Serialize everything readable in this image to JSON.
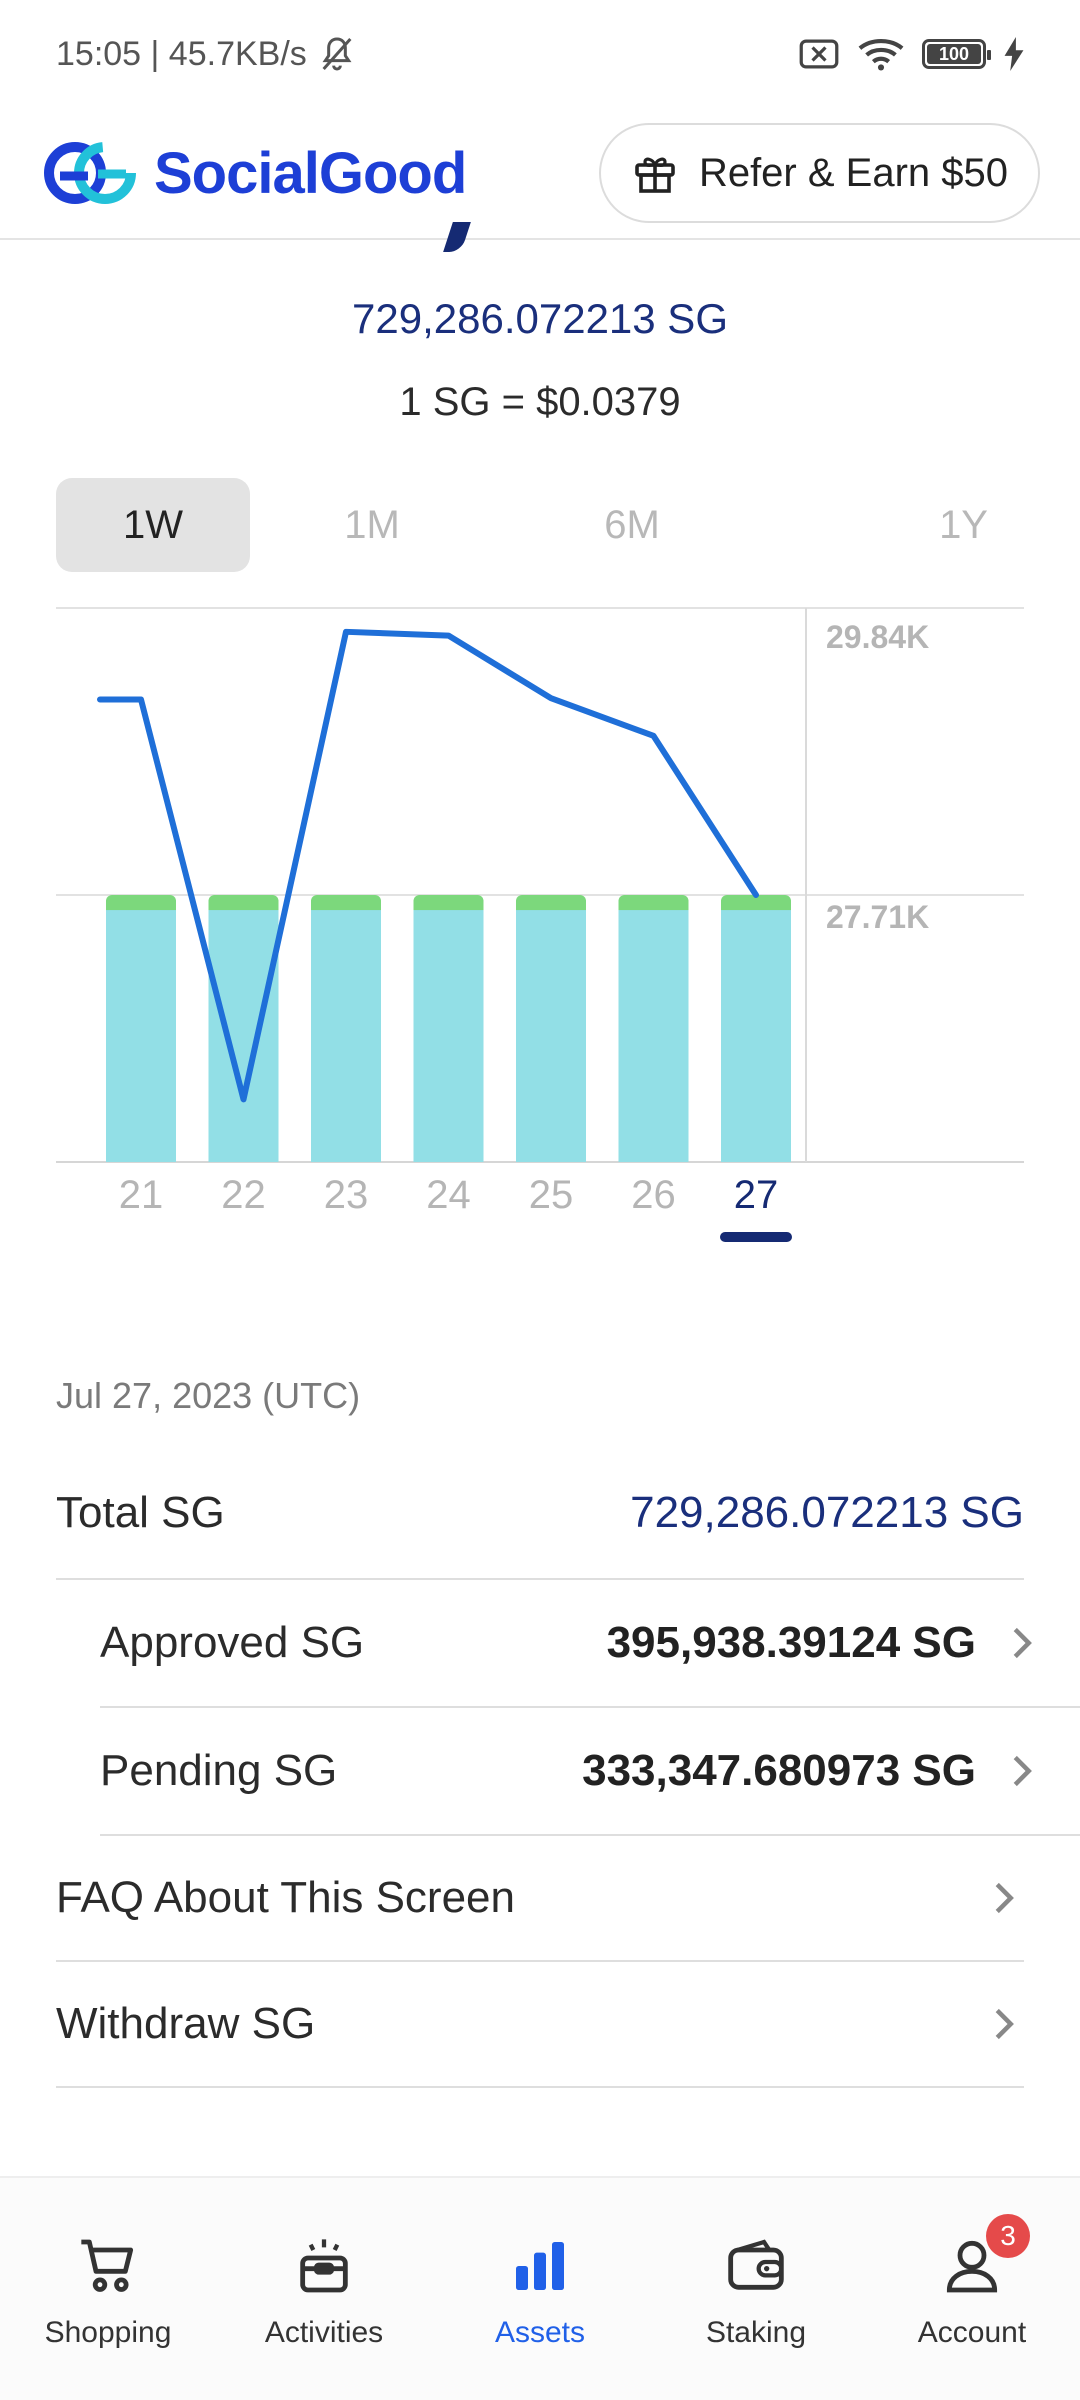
{
  "status_bar": {
    "time_speed": "15:05 | 45.7KB/s",
    "battery": "100"
  },
  "header": {
    "brand": "SocialGood",
    "refer_label": "Refer & Earn $50"
  },
  "balance": {
    "amount": "729,286.072213 SG",
    "rate": "1 SG = $0.0379"
  },
  "range_tabs": [
    "1W",
    "1M",
    "6M",
    "1Y"
  ],
  "chart_data": {
    "type": "bar",
    "categories": [
      "21",
      "22",
      "23",
      "24",
      "25",
      "26",
      "27"
    ],
    "selected": "27",
    "y_tick_labels": [
      "29.84K",
      "27.71K"
    ],
    "bars": {
      "values": [
        27.59,
        27.59,
        27.59,
        27.59,
        27.59,
        27.59,
        27.59
      ],
      "top_values": [
        27.71,
        27.71,
        27.71,
        27.71,
        27.71,
        27.71,
        27.71
      ]
    },
    "line": {
      "values": [
        29.27,
        29.27,
        26.08,
        29.81,
        29.78,
        29.28,
        28.98,
        27.71
      ],
      "x_positions": [
        20.6,
        21,
        22,
        23,
        24,
        25,
        26,
        27
      ]
    },
    "ylim": [
      25.58,
      30.0
    ],
    "colors": {
      "bar": "#92dfe6",
      "bar_top": "#7cd87c",
      "line": "#1f6fd8",
      "selected": "#152a73"
    }
  },
  "details": {
    "date": "Jul 27, 2023 (UTC)",
    "total_label": "Total SG",
    "total_value": "729,286.072213 SG",
    "approved_label": "Approved SG",
    "approved_value": "395,938.39124 SG",
    "pending_label": "Pending SG",
    "pending_value": "333,347.680973 SG",
    "faq_label": "FAQ About This Screen",
    "withdraw_label": "Withdraw SG"
  },
  "nav": {
    "shopping": "Shopping",
    "activities": "Activities",
    "assets": "Assets",
    "staking": "Staking",
    "account": "Account",
    "account_badge": "3"
  }
}
